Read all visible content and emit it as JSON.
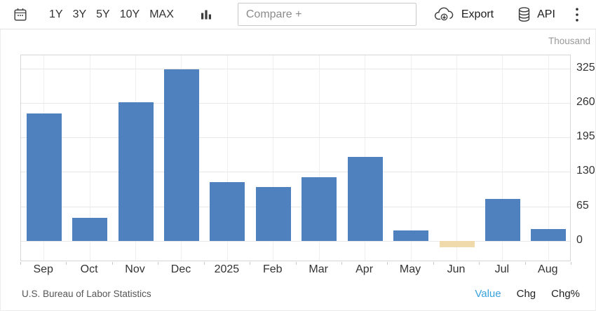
{
  "toolbar": {
    "ranges": [
      "1Y",
      "3Y",
      "5Y",
      "10Y",
      "MAX"
    ],
    "compare_placeholder": "Compare +",
    "export_label": "Export",
    "api_label": "API"
  },
  "chart_data": {
    "type": "bar",
    "unit_label": "Thousand",
    "categories": [
      "Sep",
      "Oct",
      "Nov",
      "Dec",
      "2025",
      "Feb",
      "Mar",
      "Apr",
      "May",
      "Jun",
      "Jul",
      "Aug"
    ],
    "values": [
      240,
      44,
      261,
      323,
      111,
      102,
      120,
      158,
      19,
      -13,
      79,
      22
    ],
    "colors": [
      "#4e81bd",
      "#4e81bd",
      "#4e81bd",
      "#4e81bd",
      "#4e81bd",
      "#4e81bd",
      "#4e81bd",
      "#4e81bd",
      "#4e81bd",
      "#f0d9ab",
      "#4e81bd",
      "#4e81bd"
    ],
    "yticks": [
      0,
      65,
      130,
      195,
      260,
      325
    ],
    "ylim": [
      -40,
      350
    ],
    "grid": true,
    "legend": "none"
  },
  "footer": {
    "source": "U.S. Bureau of Labor Statistics",
    "links": [
      {
        "label": "Value",
        "active": true
      },
      {
        "label": "Chg",
        "active": false
      },
      {
        "label": "Chg%",
        "active": false
      }
    ]
  },
  "colors": {
    "bar_default": "#4e81bd",
    "bar_highlight": "#f0d9ab",
    "link_active": "#38a1dc"
  }
}
